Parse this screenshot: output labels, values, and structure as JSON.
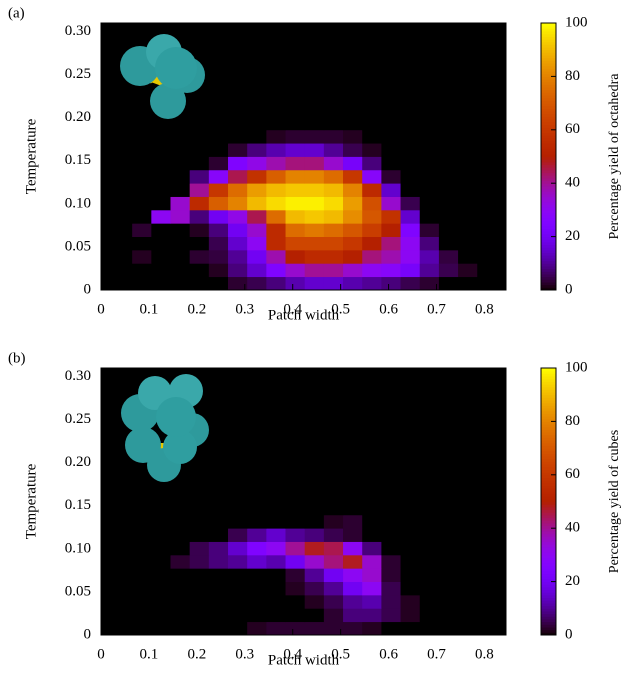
{
  "chart_data": [
    {
      "type": "heatmap",
      "panel_label": "(a)",
      "xlabel": "Patch width",
      "ylabel": "Temperature",
      "colorbar_label": "Percentage yield of octahedra",
      "colormap": "gnuplot",
      "xlim": [
        0,
        0.845
      ],
      "ylim": [
        0,
        0.31
      ],
      "xticks": [
        0,
        0.1,
        0.2,
        0.3,
        0.4,
        0.5,
        0.6,
        0.7,
        0.8
      ],
      "yticks": [
        0,
        0.05,
        {
          "value": 0.1,
          "label": "0.10"
        },
        0.15,
        {
          "value": 0.2,
          "label": "0.20"
        },
        0.25,
        {
          "value": 0.3,
          "label": "0.30"
        }
      ],
      "zlim": [
        0,
        100
      ],
      "zticks": [
        0,
        20,
        40,
        60,
        80,
        100
      ],
      "xbins": [
        0.025,
        0.065,
        0.105,
        0.145,
        0.185,
        0.225,
        0.265,
        0.305,
        0.345,
        0.385,
        0.425,
        0.465,
        0.505,
        0.545,
        0.585,
        0.625,
        0.665,
        0.705,
        0.745,
        0.785,
        0.825
      ],
      "ybins": [
        0,
        0.0155,
        0.031,
        0.0465,
        0.062,
        0.0775,
        0.093,
        0.1085,
        0.124,
        0.1395,
        0.155,
        0.1705,
        0.186,
        0.2015,
        0.217,
        0.2325,
        0.248,
        0.2635,
        0.279,
        0.2945,
        0.31
      ],
      "z": [
        [
          0,
          0,
          0,
          0,
          0,
          0,
          3,
          5,
          8,
          12,
          15,
          15,
          12,
          10,
          8,
          5,
          3,
          0,
          0,
          0
        ],
        [
          0,
          0,
          0,
          0,
          0,
          2,
          8,
          15,
          25,
          35,
          40,
          40,
          35,
          30,
          28,
          22,
          10,
          5,
          2,
          0
        ],
        [
          0,
          2,
          0,
          0,
          3,
          4,
          10,
          20,
          38,
          50,
          55,
          55,
          50,
          42,
          38,
          30,
          12,
          4,
          0,
          0
        ],
        [
          0,
          0,
          0,
          0,
          0,
          5,
          15,
          30,
          55,
          65,
          65,
          65,
          60,
          50,
          42,
          30,
          8,
          0,
          0,
          0
        ],
        [
          0,
          3,
          0,
          0,
          2,
          8,
          20,
          35,
          55,
          75,
          78,
          75,
          70,
          62,
          50,
          25,
          3,
          0,
          0,
          0
        ],
        [
          0,
          0,
          30,
          35,
          8,
          20,
          32,
          45,
          75,
          90,
          92,
          90,
          82,
          70,
          58,
          15,
          0,
          0,
          0,
          0
        ],
        [
          0,
          0,
          0,
          35,
          55,
          72,
          80,
          90,
          95,
          98,
          98,
          95,
          85,
          68,
          35,
          5,
          0,
          0,
          0,
          0
        ],
        [
          0,
          0,
          0,
          0,
          40,
          60,
          75,
          85,
          90,
          92,
          92,
          90,
          80,
          55,
          15,
          0,
          0,
          0,
          0,
          0
        ],
        [
          0,
          0,
          0,
          0,
          8,
          28,
          45,
          58,
          72,
          80,
          80,
          75,
          60,
          28,
          3,
          0,
          0,
          0,
          0,
          0
        ],
        [
          0,
          0,
          0,
          0,
          0,
          3,
          25,
          32,
          38,
          42,
          42,
          35,
          22,
          8,
          0,
          0,
          0,
          0,
          0,
          0
        ],
        [
          0,
          0,
          0,
          0,
          0,
          0,
          3,
          8,
          12,
          15,
          15,
          10,
          5,
          2,
          0,
          0,
          0,
          0,
          0,
          0
        ],
        [
          0,
          0,
          0,
          0,
          0,
          0,
          0,
          0,
          2,
          3,
          3,
          3,
          2,
          0,
          0,
          0,
          0,
          0,
          0,
          0
        ],
        [
          0,
          0,
          0,
          0,
          0,
          0,
          0,
          0,
          0,
          0,
          0,
          0,
          0,
          0,
          0,
          0,
          0,
          0,
          0,
          0
        ],
        [
          0,
          0,
          0,
          0,
          0,
          0,
          0,
          0,
          0,
          0,
          0,
          0,
          0,
          0,
          0,
          0,
          0,
          0,
          0,
          0
        ],
        [
          0,
          0,
          0,
          0,
          0,
          0,
          0,
          0,
          0,
          0,
          0,
          0,
          0,
          0,
          0,
          0,
          0,
          0,
          0,
          0
        ],
        [
          0,
          0,
          0,
          0,
          0,
          0,
          0,
          0,
          0,
          0,
          0,
          0,
          0,
          0,
          0,
          0,
          0,
          0,
          0,
          0
        ],
        [
          0,
          0,
          0,
          0,
          0,
          0,
          0,
          0,
          0,
          0,
          0,
          0,
          0,
          0,
          0,
          0,
          0,
          0,
          0,
          0
        ],
        [
          0,
          0,
          0,
          0,
          0,
          0,
          0,
          0,
          0,
          0,
          0,
          0,
          0,
          0,
          0,
          0,
          0,
          0,
          0,
          0
        ],
        [
          0,
          0,
          0,
          0,
          0,
          0,
          0,
          0,
          0,
          0,
          0,
          0,
          0,
          0,
          0,
          0,
          0,
          0,
          0,
          0
        ],
        [
          0,
          0,
          0,
          0,
          0,
          0,
          0,
          0,
          0,
          0,
          0,
          0,
          0,
          0,
          0,
          0,
          0,
          0,
          0,
          0
        ]
      ]
    },
    {
      "type": "heatmap",
      "panel_label": "(b)",
      "xlabel": "Patch width",
      "ylabel": "Temperature",
      "colorbar_label": "Percentage yield of cubes",
      "colormap": "gnuplot",
      "xlim": [
        0,
        0.845
      ],
      "ylim": [
        0,
        0.31
      ],
      "xticks": [
        0,
        0.1,
        0.2,
        0.3,
        0.4,
        0.5,
        0.6,
        0.7,
        0.8
      ],
      "yticks": [
        0,
        0.05,
        {
          "value": 0.1,
          "label": "0.10"
        },
        0.15,
        {
          "value": 0.2,
          "label": "0.20"
        },
        0.25,
        {
          "value": 0.3,
          "label": "0.30"
        }
      ],
      "zlim": [
        0,
        100
      ],
      "zticks": [
        0,
        20,
        40,
        60,
        80,
        100
      ],
      "xbins": [
        0.025,
        0.065,
        0.105,
        0.145,
        0.185,
        0.225,
        0.265,
        0.305,
        0.345,
        0.385,
        0.425,
        0.465,
        0.505,
        0.545,
        0.585,
        0.625,
        0.665,
        0.705,
        0.745,
        0.785,
        0.825
      ],
      "ybins": [
        0,
        0.0155,
        0.031,
        0.0465,
        0.062,
        0.0775,
        0.093,
        0.1085,
        0.124,
        0.1395,
        0.155,
        0.1705,
        0.186,
        0.2015,
        0.217,
        0.2325,
        0.248,
        0.2635,
        0.279,
        0.2945,
        0.31
      ],
      "z": [
        [
          0,
          0,
          0,
          0,
          0,
          0,
          0,
          2,
          3,
          3,
          3,
          3,
          3,
          2,
          0,
          0,
          0,
          0,
          0,
          0
        ],
        [
          0,
          0,
          0,
          0,
          0,
          0,
          0,
          0,
          0,
          0,
          0,
          3,
          8,
          8,
          5,
          2,
          0,
          0,
          0,
          0
        ],
        [
          0,
          0,
          0,
          0,
          0,
          0,
          0,
          0,
          0,
          0,
          2,
          5,
          10,
          12,
          5,
          2,
          0,
          0,
          0,
          0
        ],
        [
          0,
          0,
          0,
          0,
          0,
          0,
          0,
          0,
          0,
          2,
          5,
          10,
          20,
          30,
          5,
          0,
          0,
          0,
          0,
          0
        ],
        [
          0,
          0,
          0,
          0,
          0,
          0,
          0,
          0,
          0,
          3,
          10,
          20,
          30,
          35,
          3,
          0,
          0,
          0,
          0,
          0
        ],
        [
          0,
          0,
          0,
          3,
          5,
          8,
          10,
          15,
          12,
          20,
          35,
          42,
          48,
          35,
          3,
          0,
          0,
          0,
          0,
          0
        ],
        [
          0,
          0,
          0,
          0,
          5,
          8,
          15,
          25,
          30,
          40,
          48,
          45,
          30,
          8,
          0,
          0,
          0,
          0,
          0,
          0
        ],
        [
          0,
          0,
          0,
          0,
          0,
          0,
          5,
          10,
          15,
          10,
          8,
          5,
          3,
          0,
          0,
          0,
          0,
          0,
          0,
          0
        ],
        [
          0,
          0,
          0,
          0,
          0,
          0,
          0,
          0,
          0,
          0,
          0,
          2,
          3,
          0,
          0,
          0,
          0,
          0,
          0,
          0
        ],
        [
          0,
          0,
          0,
          0,
          0,
          0,
          0,
          0,
          0,
          0,
          0,
          0,
          0,
          0,
          0,
          0,
          0,
          0,
          0,
          0
        ],
        [
          0,
          0,
          0,
          0,
          0,
          0,
          0,
          0,
          0,
          0,
          0,
          0,
          0,
          0,
          0,
          0,
          0,
          0,
          0,
          0
        ],
        [
          0,
          0,
          0,
          0,
          0,
          0,
          0,
          0,
          0,
          0,
          0,
          0,
          0,
          0,
          0,
          0,
          0,
          0,
          0,
          0
        ],
        [
          0,
          0,
          0,
          0,
          0,
          0,
          0,
          0,
          0,
          0,
          0,
          0,
          0,
          0,
          0,
          0,
          0,
          0,
          0,
          0
        ],
        [
          0,
          0,
          0,
          0,
          0,
          0,
          0,
          0,
          0,
          0,
          0,
          0,
          0,
          0,
          0,
          0,
          0,
          0,
          0,
          0
        ],
        [
          0,
          0,
          0,
          0,
          0,
          0,
          0,
          0,
          0,
          0,
          0,
          0,
          0,
          0,
          0,
          0,
          0,
          0,
          0,
          0
        ],
        [
          0,
          0,
          0,
          0,
          0,
          0,
          0,
          0,
          0,
          0,
          0,
          0,
          0,
          0,
          0,
          0,
          0,
          0,
          0,
          0
        ],
        [
          0,
          0,
          0,
          0,
          0,
          0,
          0,
          0,
          0,
          0,
          0,
          0,
          0,
          0,
          0,
          0,
          0,
          0,
          0,
          0
        ],
        [
          0,
          0,
          0,
          0,
          0,
          0,
          0,
          0,
          0,
          0,
          0,
          0,
          0,
          0,
          0,
          0,
          0,
          0,
          0,
          0
        ],
        [
          0,
          0,
          0,
          0,
          0,
          0,
          0,
          0,
          0,
          0,
          0,
          0,
          0,
          0,
          0,
          0,
          0,
          0,
          0,
          0
        ],
        [
          0,
          0,
          0,
          0,
          0,
          0,
          0,
          0,
          0,
          0,
          0,
          0,
          0,
          0,
          0,
          0,
          0,
          0,
          0,
          0
        ]
      ]
    }
  ]
}
